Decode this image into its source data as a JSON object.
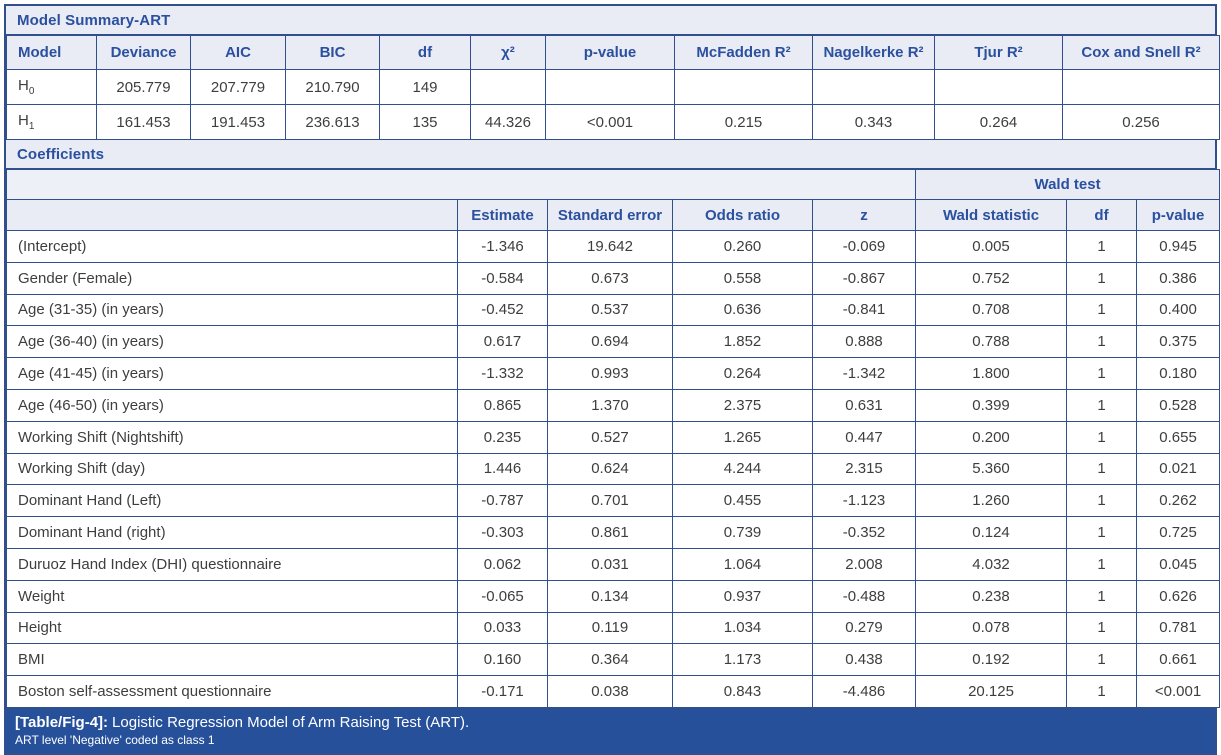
{
  "model_summary": {
    "title": "Model Summary-ART",
    "columns": [
      "Model",
      "Deviance",
      "AIC",
      "BIC",
      "df",
      "χ²",
      "p-value",
      "McFadden R²",
      "Nagelkerke R²",
      "Tjur R²",
      "Cox and Snell R²"
    ],
    "rows": [
      {
        "model": "H",
        "model_sub": "0",
        "cells": [
          "205.779",
          "207.779",
          "210.790",
          "149",
          "",
          "",
          "",
          "",
          "",
          ""
        ]
      },
      {
        "model": "H",
        "model_sub": "1",
        "cells": [
          "161.453",
          "191.453",
          "236.613",
          "135",
          "44.326",
          "<0.001",
          "0.215",
          "0.343",
          "0.264",
          "0.256"
        ]
      }
    ]
  },
  "coefficients": {
    "title": "Coefficients",
    "group_header": "Wald test",
    "columns": [
      "",
      "Estimate",
      "Standard error",
      "Odds ratio",
      "z",
      "Wald statistic",
      "df",
      "p-value"
    ],
    "rows": [
      {
        "label": "(Intercept)",
        "values": [
          "-1.346",
          "19.642",
          "0.260",
          "-0.069",
          "0.005",
          "1",
          "0.945"
        ]
      },
      {
        "label": "Gender (Female)",
        "values": [
          "-0.584",
          "0.673",
          "0.558",
          "-0.867",
          "0.752",
          "1",
          "0.386"
        ]
      },
      {
        "label": "Age (31-35) (in years)",
        "values": [
          "-0.452",
          "0.537",
          "0.636",
          "-0.841",
          "0.708",
          "1",
          "0.400"
        ]
      },
      {
        "label": "Age (36-40) (in years)",
        "values": [
          "0.617",
          "0.694",
          "1.852",
          "0.888",
          "0.788",
          "1",
          "0.375"
        ]
      },
      {
        "label": "Age (41-45) (in years)",
        "values": [
          "-1.332",
          "0.993",
          "0.264",
          "-1.342",
          "1.800",
          "1",
          "0.180"
        ]
      },
      {
        "label": "Age (46-50) (in years)",
        "values": [
          "0.865",
          "1.370",
          "2.375",
          "0.631",
          "0.399",
          "1",
          "0.528"
        ]
      },
      {
        "label": "Working Shift (Nightshift)",
        "values": [
          "0.235",
          "0.527",
          "1.265",
          "0.447",
          "0.200",
          "1",
          "0.655"
        ]
      },
      {
        "label": "Working Shift (day)",
        "values": [
          "1.446",
          "0.624",
          "4.244",
          "2.315",
          "5.360",
          "1",
          "0.021"
        ]
      },
      {
        "label": "Dominant Hand (Left)",
        "values": [
          "-0.787",
          "0.701",
          "0.455",
          "-1.123",
          "1.260",
          "1",
          "0.262"
        ]
      },
      {
        "label": "Dominant Hand (right)",
        "values": [
          "-0.303",
          "0.861",
          "0.739",
          "-0.352",
          "0.124",
          "1",
          "0.725"
        ]
      },
      {
        "label": "Duruoz Hand Index (DHI) questionnaire",
        "values": [
          "0.062",
          "0.031",
          "1.064",
          "2.008",
          "4.032",
          "1",
          "0.045"
        ]
      },
      {
        "label": "Weight",
        "values": [
          "-0.065",
          "0.134",
          "0.937",
          "-0.488",
          "0.238",
          "1",
          "0.626"
        ]
      },
      {
        "label": "Height",
        "values": [
          "0.033",
          "0.119",
          "1.034",
          "0.279",
          "0.078",
          "1",
          "0.781"
        ]
      },
      {
        "label": "BMI",
        "values": [
          "0.160",
          "0.364",
          "1.173",
          "0.438",
          "0.192",
          "1",
          "0.661"
        ]
      },
      {
        "label": "Boston self-assessment questionnaire",
        "values": [
          "-0.171",
          "0.038",
          "0.843",
          "-4.486",
          "20.125",
          "1",
          "<0.001"
        ]
      }
    ]
  },
  "caption": {
    "tag": "[Table/Fig-4]:",
    "text": "Logistic Regression Model of Arm Raising Test (ART).",
    "note": "ART level 'Negative' coded as class 1"
  },
  "colors": {
    "header_band_bg": "#e9ecf4",
    "header_text": "#2b509f",
    "border": "#30508d",
    "data_text": "#3e3e3e",
    "caption_bg": "#27509b",
    "caption_text": "#ffffff"
  }
}
